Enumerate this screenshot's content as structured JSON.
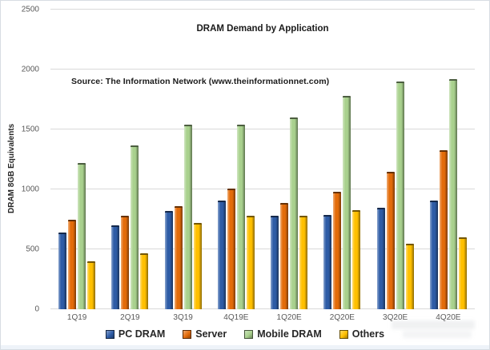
{
  "frame": {
    "background": "#ffffff",
    "border_color": "#d7dde3"
  },
  "chart_data": {
    "type": "bar",
    "title": "DRAM Demand by Application",
    "source_note": "Source: The Information Network (www.theinformationnet.com)",
    "ylabel": "DRAM 8GB Equivalents",
    "xlabel": "",
    "ylim": [
      0,
      2500
    ],
    "yticks": [
      0,
      500,
      1000,
      1500,
      2000,
      2500
    ],
    "grid": true,
    "gridline_color": "#d9d9d9",
    "legend_position": "bottom",
    "categories": [
      "1Q19",
      "2Q19",
      "3Q19",
      "4Q19E",
      "1Q20E",
      "2Q20E",
      "3Q20E",
      "4Q20E"
    ],
    "series": [
      {
        "name": "PC DRAM",
        "color": "#2e5ca6",
        "values": [
          640,
          700,
          820,
          910,
          780,
          790,
          850,
          910
        ]
      },
      {
        "name": "Server",
        "color": "#e36c0a",
        "values": [
          750,
          780,
          860,
          1010,
          890,
          980,
          1150,
          1330
        ]
      },
      {
        "name": "Mobile DRAM",
        "color": "#a9d18e",
        "values": [
          1220,
          1370,
          1540,
          1540,
          1600,
          1780,
          1900,
          1920
        ]
      },
      {
        "name": "Others",
        "color": "#ffc000",
        "values": [
          400,
          470,
          720,
          780,
          780,
          830,
          550,
          600
        ]
      }
    ]
  }
}
